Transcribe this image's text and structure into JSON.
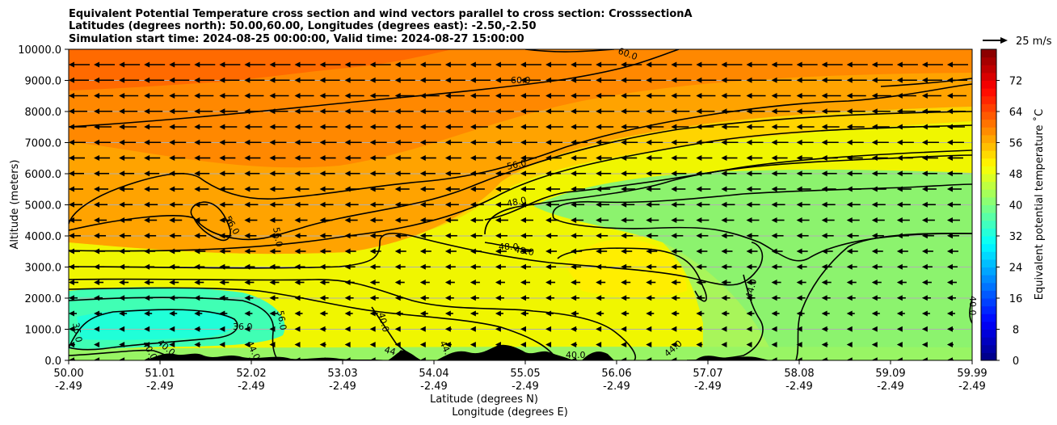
{
  "chart_data": {
    "type": "heatmap",
    "title_lines": [
      "Equivalent Potential Temperature cross section and wind vectors parallel to cross section: CrosssectionA",
      "Latitudes (degrees north): 50.00,60.00, Longitudes (degrees east): -2.50,-2.50",
      "Simulation start time: 2024-08-25 00:00:00, Valid time: 2024-08-27 15:00:00"
    ],
    "xlabel": "Latitude (degrees N)",
    "xlabel2": "Longitude (degrees E)",
    "ylabel": "Altitude (meters)",
    "x_ticks": [
      "50.00",
      "51.01",
      "52.02",
      "53.03",
      "54.04",
      "55.05",
      "56.06",
      "57.07",
      "58.08",
      "59.09",
      "59.99"
    ],
    "x_ticks2": [
      "-2.49",
      "-2.49",
      "-2.49",
      "-2.49",
      "-2.49",
      "-2.49",
      "-2.49",
      "-2.49",
      "-2.49",
      "-2.49",
      "-2.49"
    ],
    "y_ticks": [
      "0.0",
      "1000.0",
      "2000.0",
      "3000.0",
      "4000.0",
      "5000.0",
      "6000.0",
      "7000.0",
      "8000.0",
      "9000.0",
      "10000.0"
    ],
    "xlim": [
      50.0,
      59.99
    ],
    "ylim": [
      0,
      10000
    ],
    "colorbar": {
      "label": "Equivalent potential temperature ˚C",
      "ticks": [
        "0",
        "8",
        "16",
        "24",
        "32",
        "40",
        "48",
        "56",
        "64",
        "72"
      ],
      "range": [
        0,
        80
      ]
    },
    "quiver_key": {
      "label": "25 m/s",
      "value": 25
    },
    "contour_labels": [
      "60.0",
      "60.0",
      "56.0",
      "56.0",
      "56.0",
      "56.0",
      "48.0",
      "48.0",
      "48.0",
      "40.0",
      "36.0",
      "36.0",
      "44.0",
      "44.0",
      "44.0",
      "44.0",
      "44.0",
      "40.0",
      "40.0",
      "40.0",
      "40.0"
    ],
    "contour_levels": [
      36,
      40,
      44,
      48,
      56,
      60
    ],
    "grid": "horizontal",
    "palette": {
      "topo": "#000000",
      "contour": "#000000",
      "grid": "#b0b0b0"
    }
  }
}
